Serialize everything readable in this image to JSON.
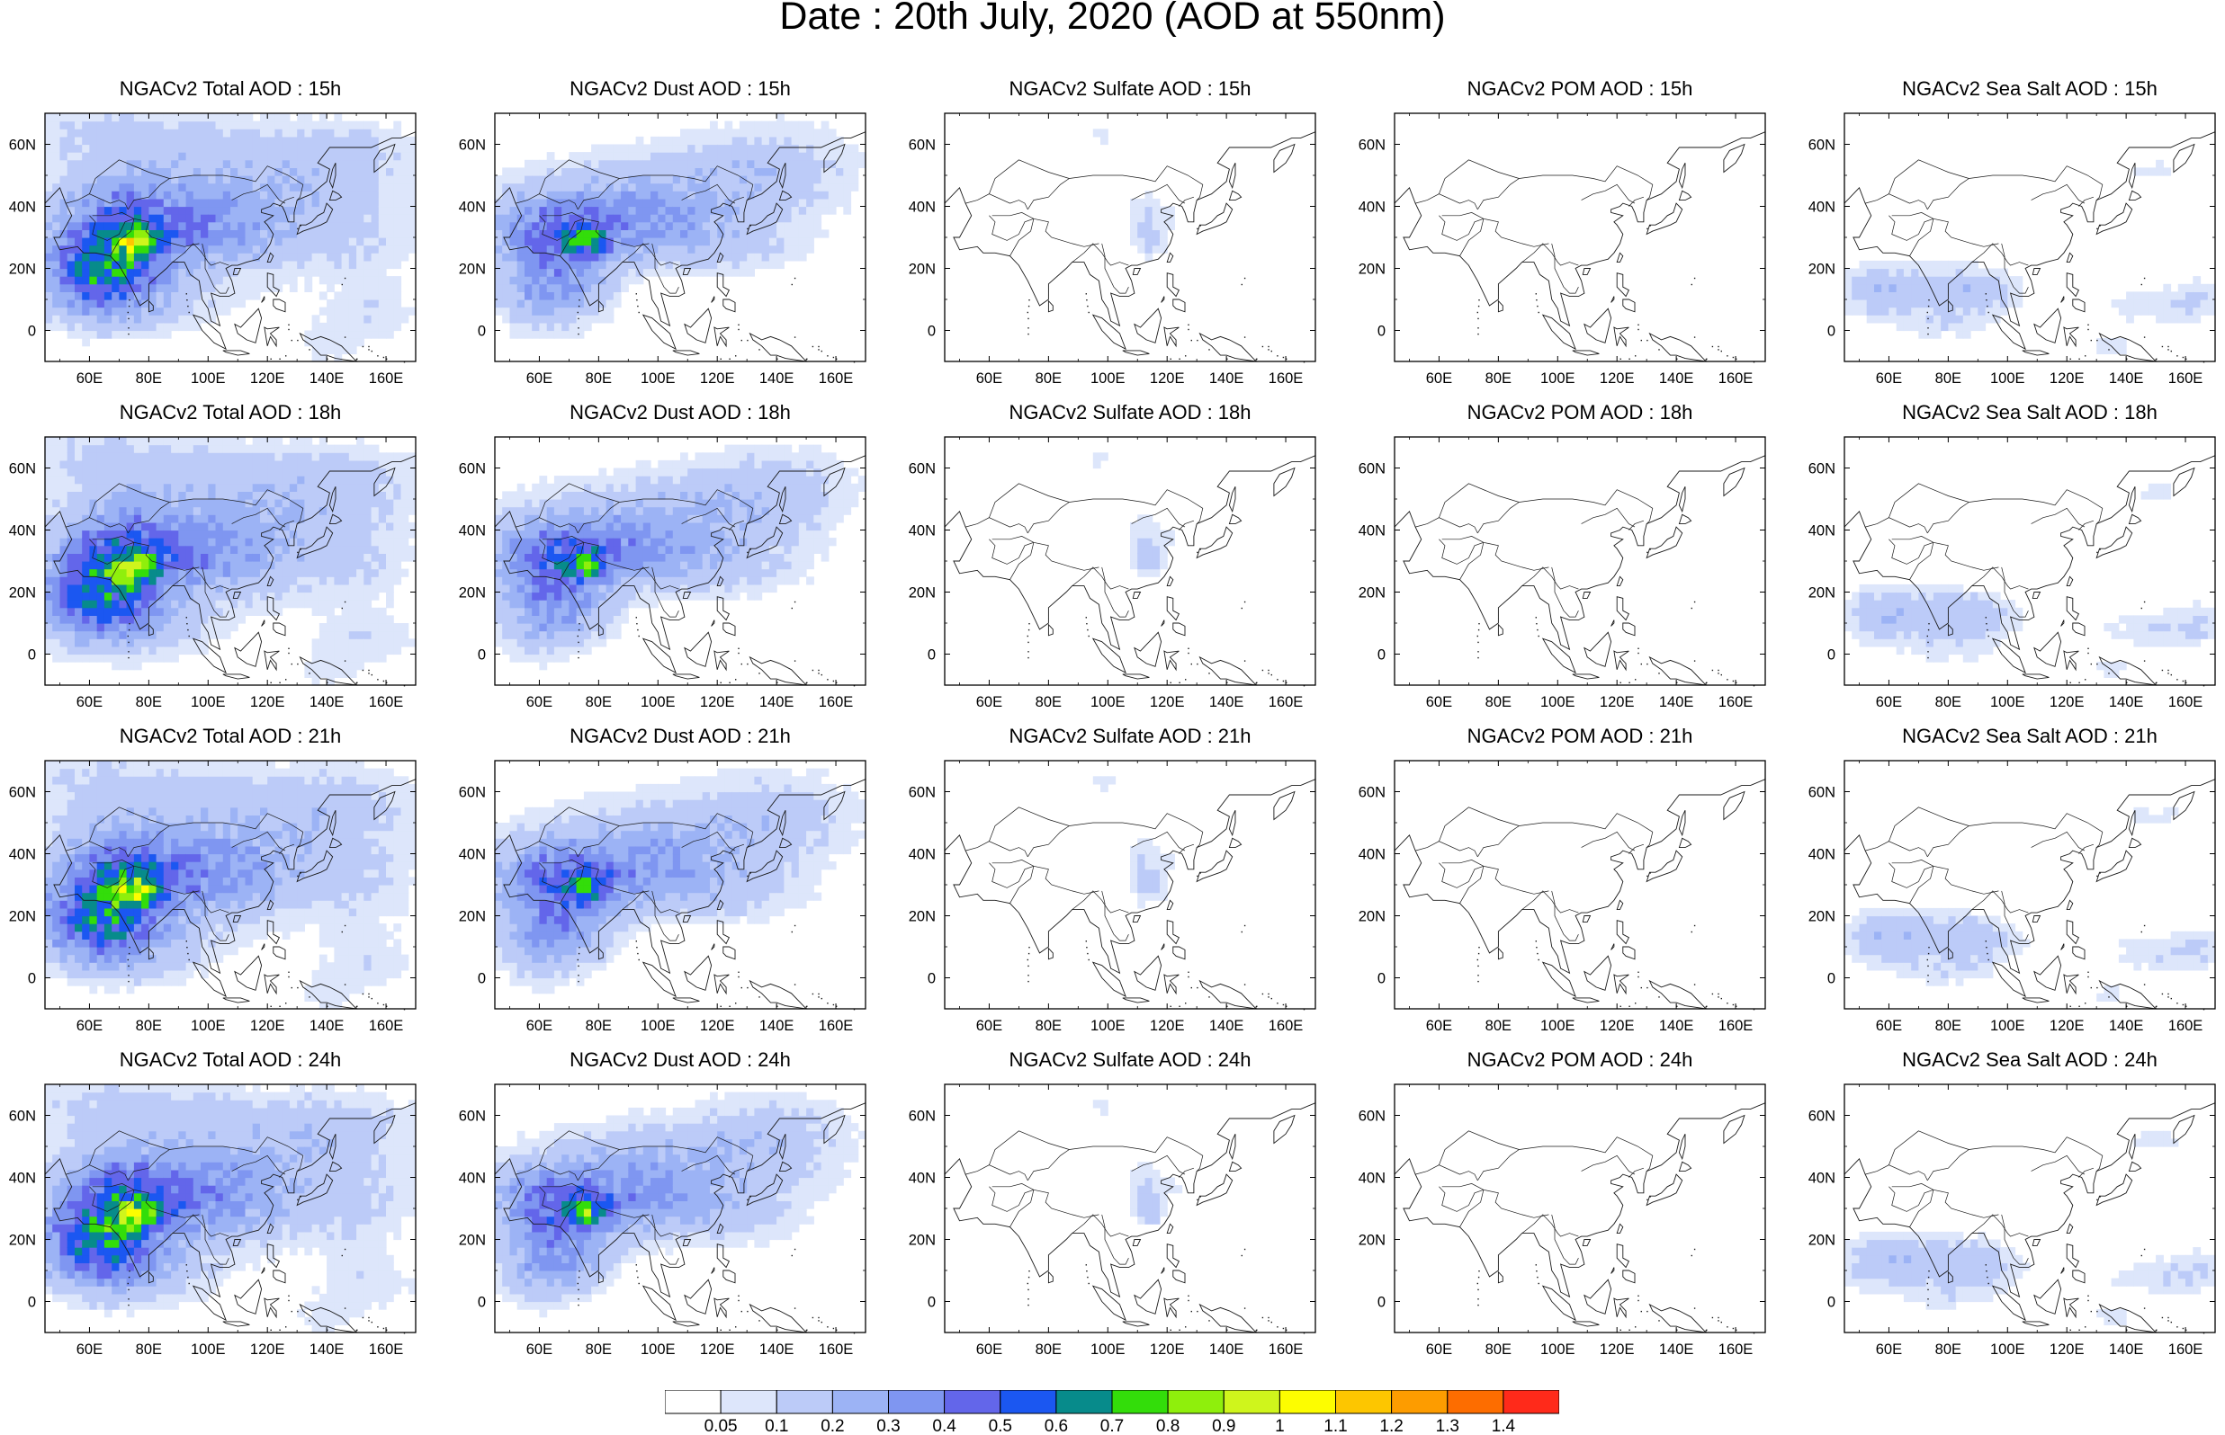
{
  "title": "Date : 20th July, 2020 (AOD at 550nm)",
  "axes": {
    "lon_ticks": [
      "60E",
      "80E",
      "100E",
      "120E",
      "140E",
      "160E"
    ],
    "lat_ticks": [
      "60N",
      "40N",
      "20N",
      "0"
    ],
    "lon_range": [
      45,
      170
    ],
    "lat_range": [
      -10,
      70
    ]
  },
  "panels": [
    {
      "title": "NGACv2 Total AOD : 15h",
      "species": "total",
      "hour": "15h"
    },
    {
      "title": "NGACv2 Dust AOD : 15h",
      "species": "dust",
      "hour": "15h"
    },
    {
      "title": "NGACv2 Sulfate AOD : 15h",
      "species": "sulfate",
      "hour": "15h"
    },
    {
      "title": "NGACv2 POM AOD : 15h",
      "species": "pom",
      "hour": "15h"
    },
    {
      "title": "NGACv2 Sea Salt AOD : 15h",
      "species": "seasalt",
      "hour": "15h"
    },
    {
      "title": "NGACv2 Total AOD : 18h",
      "species": "total",
      "hour": "18h"
    },
    {
      "title": "NGACv2 Dust AOD : 18h",
      "species": "dust",
      "hour": "18h"
    },
    {
      "title": "NGACv2 Sulfate AOD : 18h",
      "species": "sulfate",
      "hour": "18h"
    },
    {
      "title": "NGACv2 POM AOD : 18h",
      "species": "pom",
      "hour": "18h"
    },
    {
      "title": "NGACv2 Sea Salt AOD : 18h",
      "species": "seasalt",
      "hour": "18h"
    },
    {
      "title": "NGACv2 Total AOD : 21h",
      "species": "total",
      "hour": "21h"
    },
    {
      "title": "NGACv2 Dust AOD : 21h",
      "species": "dust",
      "hour": "21h"
    },
    {
      "title": "NGACv2 Sulfate AOD : 21h",
      "species": "sulfate",
      "hour": "21h"
    },
    {
      "title": "NGACv2 POM AOD : 21h",
      "species": "pom",
      "hour": "21h"
    },
    {
      "title": "NGACv2 Sea Salt AOD : 21h",
      "species": "seasalt",
      "hour": "21h"
    },
    {
      "title": "NGACv2 Total AOD : 24h",
      "species": "total",
      "hour": "24h"
    },
    {
      "title": "NGACv2 Dust AOD : 24h",
      "species": "dust",
      "hour": "24h"
    },
    {
      "title": "NGACv2 Sulfate AOD : 24h",
      "species": "sulfate",
      "hour": "24h"
    },
    {
      "title": "NGACv2 POM AOD : 24h",
      "species": "pom",
      "hour": "24h"
    },
    {
      "title": "NGACv2 Sea Salt  AOD : 24h",
      "species": "seasalt",
      "hour": "24h"
    }
  ],
  "colorbar": {
    "labels": [
      "0.05",
      "0.1",
      "0.2",
      "0.3",
      "0.4",
      "0.5",
      "0.6",
      "0.7",
      "0.8",
      "0.9",
      "1",
      "1.1",
      "1.2",
      "1.3",
      "1.4"
    ],
    "colors": [
      "#ffffff",
      "#dde6fb",
      "#bccbf8",
      "#9cb3f5",
      "#7f96f1",
      "#6366ea",
      "#1b57f1",
      "#078b8b",
      "#33dd0a",
      "#8fef0c",
      "#cff51c",
      "#fdfd00",
      "#fdc600",
      "#fd9c00",
      "#fd6d00",
      "#ff2a1a"
    ]
  }
}
